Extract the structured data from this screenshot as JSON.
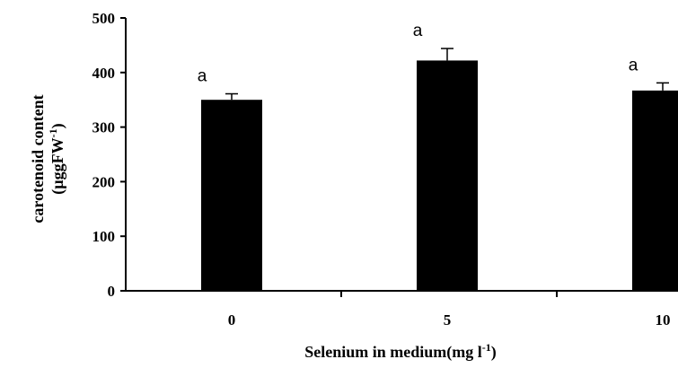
{
  "chart_data": {
    "type": "bar",
    "categories": [
      "0",
      "5",
      "10"
    ],
    "values": [
      350,
      422,
      367
    ],
    "errors": [
      11,
      22,
      14
    ],
    "significance": [
      "a",
      "a",
      "a"
    ],
    "ylim": [
      0,
      500
    ],
    "yticks": [
      0,
      100,
      200,
      300,
      400,
      500
    ],
    "ylabel_line1": "carotenoid content",
    "ylabel_line2_base": "(µggFW",
    "ylabel_line2_sup": "-1",
    "ylabel_line2_end": ")",
    "xlabel_base": "Selenium in medium(mg l",
    "xlabel_sup": "-1",
    "xlabel_end": ")",
    "bar_color": "#000000",
    "grid": false,
    "legend": "none"
  }
}
